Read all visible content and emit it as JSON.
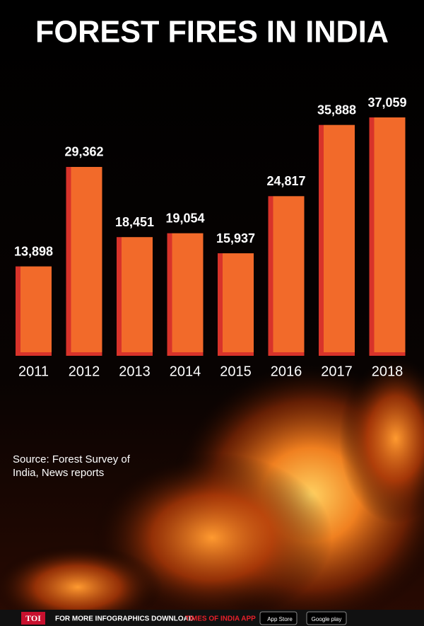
{
  "chart_data": {
    "type": "bar",
    "title": "FOREST FIRES IN INDIA",
    "categories": [
      "2011",
      "2012",
      "2013",
      "2014",
      "2015",
      "2016",
      "2017",
      "2018"
    ],
    "values": [
      13898,
      29362,
      18451,
      19054,
      15937,
      24817,
      35888,
      37059
    ],
    "value_labels": [
      "13,898",
      "29,362",
      "18,451",
      "19,054",
      "15,937",
      "24,817",
      "35,888",
      "37,059"
    ],
    "color": "#f26a2a"
  },
  "source": "Source: Forest Survey of India, News reports",
  "footer": {
    "logo": "TOI",
    "text": "FOR MORE  INFOGRAPHICS DOWNLOAD",
    "app": "TIMES OF INDIA  APP",
    "badges": [
      "App Store",
      "Google play"
    ]
  }
}
